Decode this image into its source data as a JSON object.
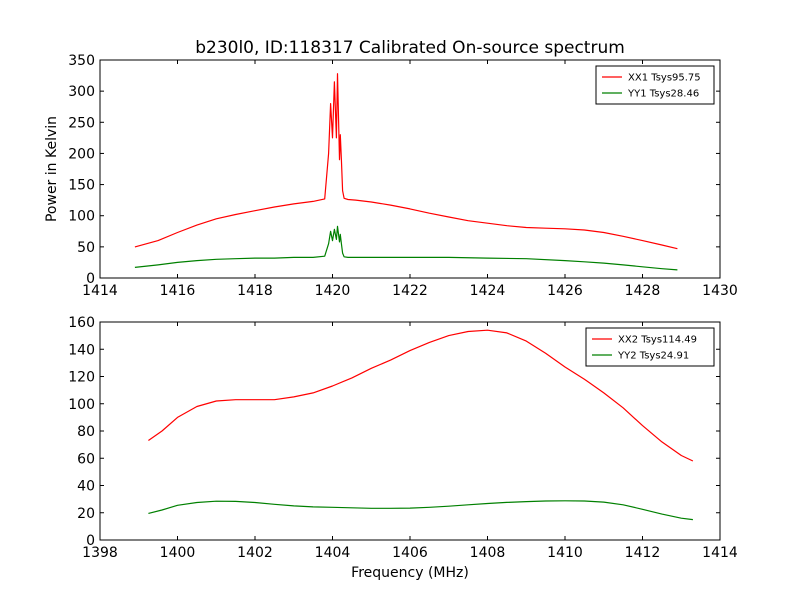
{
  "figure": {
    "title": "b230l0, ID:118317 Calibrated On-source spectrum"
  },
  "colors": {
    "xx": "#ff0000",
    "yy": "#008000"
  },
  "chart_data": [
    {
      "type": "line",
      "title": "b230l0, ID:118317 Calibrated On-source spectrum",
      "xlabel": "",
      "ylabel": "Power in Kelvin",
      "xlim": [
        1414,
        1430
      ],
      "ylim": [
        0,
        350
      ],
      "xticks": [
        1414,
        1416,
        1418,
        1420,
        1422,
        1424,
        1426,
        1428,
        1430
      ],
      "yticks": [
        0,
        50,
        100,
        150,
        200,
        250,
        300,
        350
      ],
      "grid": false,
      "legend": "top-right",
      "series": [
        {
          "name": "XX1 Tsys95.75",
          "color": "#ff0000",
          "x": [
            1414.9,
            1415.5,
            1416.0,
            1416.5,
            1417.0,
            1417.5,
            1418.0,
            1418.5,
            1419.0,
            1419.5,
            1419.8,
            1419.9,
            1419.95,
            1420.0,
            1420.05,
            1420.1,
            1420.13,
            1420.18,
            1420.2,
            1420.23,
            1420.26,
            1420.3,
            1420.4,
            1420.6,
            1421.0,
            1421.5,
            1422.0,
            1422.5,
            1423.0,
            1423.5,
            1424.0,
            1424.5,
            1425.0,
            1425.5,
            1426.0,
            1426.5,
            1427.0,
            1427.5,
            1428.0,
            1428.5,
            1428.9
          ],
          "y": [
            50,
            60,
            73,
            85,
            95,
            102,
            108,
            114,
            119,
            123,
            127,
            200,
            280,
            225,
            315,
            225,
            328,
            190,
            230,
            190,
            140,
            128,
            126,
            125,
            122,
            117,
            111,
            104,
            98,
            92,
            88,
            84,
            81,
            80,
            79,
            77,
            73,
            67,
            60,
            53,
            47
          ]
        },
        {
          "name": "YY1 Tsys28.46",
          "color": "#008000",
          "x": [
            1414.9,
            1415.5,
            1416.0,
            1416.5,
            1417.0,
            1417.5,
            1418.0,
            1418.5,
            1419.0,
            1419.5,
            1419.8,
            1419.9,
            1419.95,
            1420.0,
            1420.05,
            1420.1,
            1420.13,
            1420.18,
            1420.2,
            1420.23,
            1420.26,
            1420.3,
            1420.4,
            1421.0,
            1422.0,
            1423.0,
            1424.0,
            1425.0,
            1426.0,
            1426.5,
            1427.0,
            1427.5,
            1428.0,
            1428.5,
            1428.9
          ],
          "y": [
            17,
            21,
            25,
            28,
            30,
            31,
            32,
            32,
            33,
            33,
            35,
            55,
            75,
            60,
            78,
            62,
            83,
            58,
            70,
            55,
            40,
            34,
            33,
            33,
            33,
            33,
            32,
            31,
            28,
            26,
            24,
            21,
            18,
            15,
            13
          ]
        }
      ]
    },
    {
      "type": "line",
      "title": "",
      "xlabel": "Frequency (MHz)",
      "ylabel": "",
      "xlim": [
        1398,
        1414
      ],
      "ylim": [
        0,
        160
      ],
      "xticks": [
        1398,
        1400,
        1402,
        1404,
        1406,
        1408,
        1410,
        1412,
        1414
      ],
      "yticks": [
        0,
        20,
        40,
        60,
        80,
        100,
        120,
        140,
        160
      ],
      "grid": false,
      "legend": "top-right",
      "series": [
        {
          "name": "XX2 Tsys114.49",
          "color": "#ff0000",
          "x": [
            1399.25,
            1399.6,
            1400.0,
            1400.5,
            1401.0,
            1401.5,
            1402.0,
            1402.5,
            1403.0,
            1403.5,
            1404.0,
            1404.5,
            1405.0,
            1405.5,
            1406.0,
            1406.5,
            1407.0,
            1407.5,
            1408.0,
            1408.5,
            1409.0,
            1409.5,
            1410.0,
            1410.5,
            1411.0,
            1411.5,
            1412.0,
            1412.5,
            1413.0,
            1413.3
          ],
          "y": [
            73,
            80,
            90,
            98,
            102,
            103,
            103,
            103,
            105,
            108,
            113,
            119,
            126,
            132,
            139,
            145,
            150,
            153,
            154,
            152,
            146,
            137,
            127,
            118,
            108,
            97,
            84,
            72,
            62,
            58
          ]
        },
        {
          "name": "YY2 Tsys24.91",
          "color": "#008000",
          "x": [
            1399.25,
            1399.6,
            1400.0,
            1400.5,
            1401.0,
            1401.5,
            1402.0,
            1402.5,
            1403.0,
            1403.5,
            1404.0,
            1404.5,
            1405.0,
            1405.5,
            1406.0,
            1406.5,
            1407.0,
            1407.5,
            1408.0,
            1408.5,
            1409.0,
            1409.5,
            1410.0,
            1410.5,
            1411.0,
            1411.5,
            1412.0,
            1412.5,
            1413.0,
            1413.3
          ],
          "y": [
            19.5,
            22,
            25.5,
            27.5,
            28.5,
            28.3,
            27.5,
            26.2,
            25,
            24.3,
            24,
            23.6,
            23.3,
            23.3,
            23.4,
            24,
            24.8,
            25.8,
            26.8,
            27.6,
            28.2,
            28.6,
            28.8,
            28.6,
            27.8,
            25.8,
            22.5,
            19,
            16,
            15
          ]
        }
      ]
    }
  ]
}
